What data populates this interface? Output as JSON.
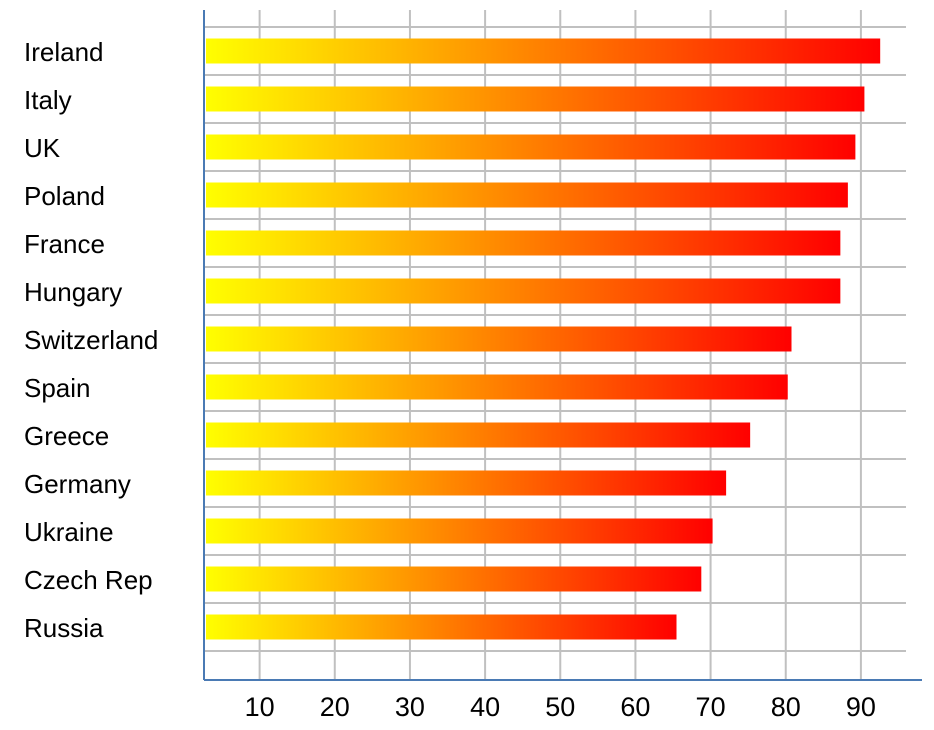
{
  "chart_data": {
    "type": "bar",
    "orientation": "horizontal",
    "categories": [
      "Ireland",
      "Italy",
      "UK",
      "Poland",
      "France",
      "Hungary",
      "Switzerland",
      "Spain",
      "Greece",
      "Germany",
      "Ukraine",
      "Czech Rep",
      "Russia"
    ],
    "values": [
      92.3,
      90.2,
      89.0,
      88.0,
      87.0,
      87.0,
      80.5,
      80.0,
      75.0,
      71.8,
      70.0,
      68.5,
      65.2
    ],
    "title": "",
    "xlabel": "",
    "ylabel": "",
    "xlim": [
      2.6,
      96
    ],
    "x_ticks": [
      10,
      20,
      30,
      40,
      50,
      60,
      70,
      80,
      90
    ],
    "grid": true,
    "legend": "none",
    "bar_gradient": [
      "#ffff00",
      "#ff0000"
    ],
    "gridline_color": "#c0c0c0",
    "axis_color": "#4a7ab4"
  }
}
